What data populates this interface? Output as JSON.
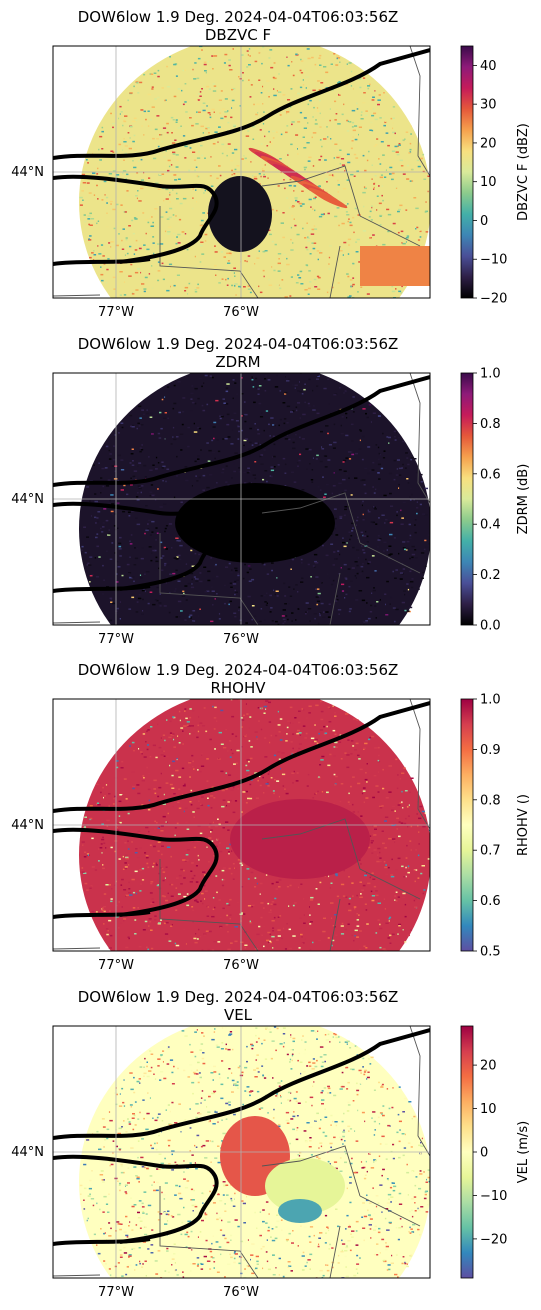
{
  "chart_data": [
    {
      "type": "heatmap",
      "title": "DOW6low 1.9 Deg. 2024-04-04T06:03:56Z",
      "subtitle": "DBZVC F",
      "colorbar_label": "DBZVC F (dBZ)",
      "colorbar_ticks": [
        "40",
        "30",
        "20",
        "10",
        "0",
        "−10",
        "−20"
      ],
      "colorbar_tick_values": [
        40,
        30,
        20,
        10,
        0,
        -10,
        -20
      ],
      "clim": [
        -20,
        45
      ],
      "colormap": "pyart_HomeyerRainbow",
      "xtick_labels": [
        "77°W",
        "76°W"
      ],
      "ytick_labels": [
        "44°N"
      ]
    },
    {
      "type": "heatmap",
      "title": "DOW6low 1.9 Deg. 2024-04-04T06:03:56Z",
      "subtitle": "ZDRM",
      "colorbar_label": "ZDRM (dB)",
      "colorbar_ticks": [
        "1.0",
        "0.8",
        "0.6",
        "0.4",
        "0.2",
        "0.0"
      ],
      "colorbar_tick_values": [
        1.0,
        0.8,
        0.6,
        0.4,
        0.2,
        0.0
      ],
      "clim": [
        0.0,
        1.0
      ],
      "colormap": "pyart_HomeyerRainbow",
      "xtick_labels": [
        "77°W",
        "76°W"
      ],
      "ytick_labels": [
        "44°N"
      ]
    },
    {
      "type": "heatmap",
      "title": "DOW6low 1.9 Deg. 2024-04-04T06:03:56Z",
      "subtitle": "RHOHV",
      "colorbar_label": "RHOHV ()",
      "colorbar_ticks": [
        "1.0",
        "0.9",
        "0.8",
        "0.7",
        "0.6",
        "0.5"
      ],
      "colorbar_tick_values": [
        1.0,
        0.9,
        0.8,
        0.7,
        0.6,
        0.5
      ],
      "clim": [
        0.5,
        1.0
      ],
      "colormap": "Spectral_r",
      "xtick_labels": [
        "77°W",
        "76°W"
      ],
      "ytick_labels": [
        "44°N"
      ]
    },
    {
      "type": "heatmap",
      "title": "DOW6low 1.9 Deg. 2024-04-04T06:03:56Z",
      "subtitle": "VEL",
      "colorbar_label": "VEL (m/s)",
      "colorbar_ticks": [
        "20",
        "10",
        "0",
        "−10",
        "−20"
      ],
      "colorbar_tick_values": [
        20,
        10,
        0,
        -10,
        -20
      ],
      "clim": [
        -29,
        29
      ],
      "colormap": "Spectral_r",
      "xtick_labels": [
        "77°W",
        "76°W"
      ],
      "ytick_labels": [
        "44°N"
      ]
    }
  ],
  "colors": {
    "coastline": "#000000",
    "borders": "#555555",
    "grid": "#b0b0b0",
    "background": "#ffffff"
  }
}
